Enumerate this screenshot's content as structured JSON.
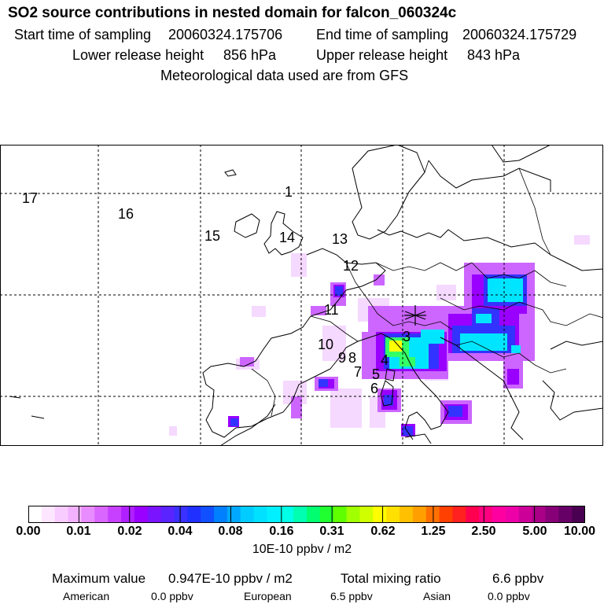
{
  "title": "SO2 source contributions in nested domain for falcon_060324c",
  "header": {
    "start_label": "Start time of sampling",
    "start_value": "20060324.175706",
    "end_label": "End time of sampling",
    "end_value": "20060324.175729",
    "lower_label": "Lower release height",
    "lower_value": "856 hPa",
    "upper_label": "Upper release height",
    "upper_value": "843 hPa",
    "met_note": "Meteorological data used are from GFS"
  },
  "map": {
    "track_labels": [
      "17",
      "16",
      "15",
      "14",
      "13",
      "12",
      "11",
      "10",
      "9",
      "8",
      "7",
      "5",
      "4",
      "6",
      "3",
      "1"
    ],
    "colors": {
      "very_low": "#f5d9ff",
      "low": "#cc66ff",
      "mid_low": "#9900ff",
      "mid": "#3333ff",
      "cyan": "#00e5ff",
      "green": "#33ff66",
      "yellow": "#ffff00"
    }
  },
  "colorbar": {
    "ticks": [
      "0.00",
      "0.01",
      "0.02",
      "0.04",
      "0.08",
      "0.16",
      "0.31",
      "0.62",
      "1.25",
      "2.50",
      "5.00",
      "10.00"
    ],
    "units": "10E-10 ppbv / m2",
    "colors": [
      "#ffffff",
      "#fde6ff",
      "#f9ccff",
      "#f2b2ff",
      "#e88cff",
      "#d966ff",
      "#c840ff",
      "#b020ff",
      "#9a00ff",
      "#7a14ff",
      "#5a24ff",
      "#3a30ff",
      "#2030ff",
      "#1050ff",
      "#0080ff",
      "#00a8ff",
      "#00ccff",
      "#00e0ff",
      "#00f0ff",
      "#00ffe6",
      "#00ffb0",
      "#00ff70",
      "#20ff30",
      "#60ff00",
      "#a0ff00",
      "#d0ff00",
      "#ffff00",
      "#ffe000",
      "#ffc000",
      "#ffa000",
      "#ff7000",
      "#ff4000",
      "#ff2020",
      "#ff0050",
      "#ff0080",
      "#ff00a0",
      "#ee00a8",
      "#cc0099",
      "#aa0088",
      "#880077",
      "#660066",
      "#4a0050"
    ]
  },
  "stats": {
    "max_label": "Maximum value",
    "max_value": "0.947E-10 ppbv / m2",
    "total_label": "Total mixing ratio",
    "total_value": "6.6 ppbv",
    "american_label": "American",
    "american_value": "0.0 ppbv",
    "european_label": "European",
    "european_value": "6.5 ppbv",
    "asian_label": "Asian",
    "asian_value": "0.0 ppbv"
  }
}
